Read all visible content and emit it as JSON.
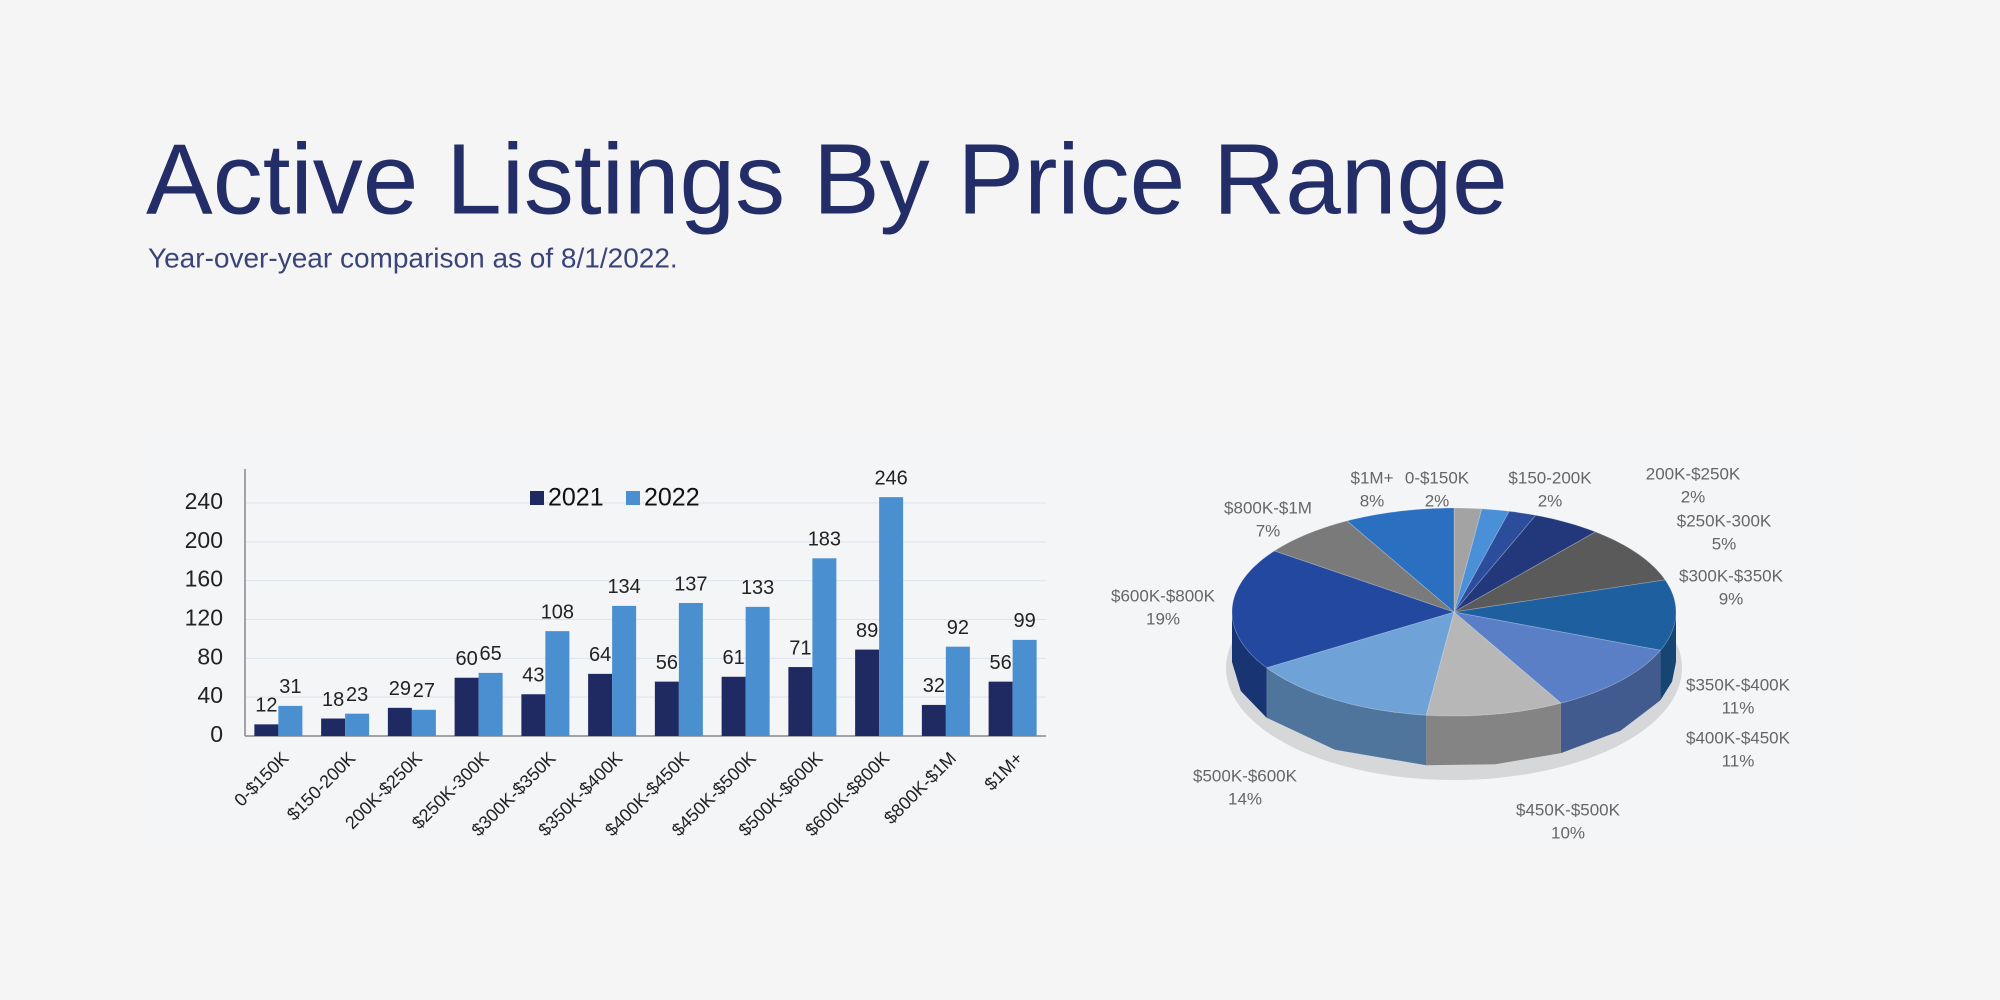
{
  "header": {
    "title": "Active Listings By Price Range",
    "subtitle": "Year-over-year comparison as of 8/1/2022."
  },
  "chart_data": [
    {
      "type": "bar",
      "categories": [
        "0-$150K",
        "$150-200K",
        "200K-$250K",
        "$250K-300K",
        "$300K-$350K",
        "$350K-$400K",
        "$400K-$450K",
        "$450K-$500K",
        "$500K-$600K",
        "$600K-$800K",
        "$800K-$1M",
        "$1M+"
      ],
      "series": [
        {
          "name": "2021",
          "color": "#1f2a63",
          "values": [
            12,
            18,
            29,
            60,
            43,
            64,
            56,
            61,
            71,
            89,
            32,
            56
          ]
        },
        {
          "name": "2022",
          "color": "#4a8fd0",
          "values": [
            31,
            23,
            27,
            65,
            108,
            134,
            137,
            133,
            183,
            246,
            92,
            99
          ]
        }
      ],
      "ylim": [
        0,
        275
      ],
      "yticks": [
        0,
        40,
        80,
        120,
        160,
        200,
        240
      ],
      "grid": true,
      "legend": "top"
    },
    {
      "type": "pie",
      "categories": [
        "0-$150K",
        "$150-200K",
        "200K-$250K",
        "$250K-300K",
        "$300K-$350K",
        "$350K-$400K",
        "$400K-$450K",
        "$450K-$500K",
        "$500K-$600K",
        "$600K-$800K",
        "$800K-$1M",
        "$1M+"
      ],
      "values": [
        2,
        2,
        2,
        5,
        9,
        11,
        11,
        10,
        14,
        19,
        7,
        8
      ],
      "value_labels": [
        "2%",
        "2%",
        "2%",
        "5%",
        "9%",
        "11%",
        "11%",
        "10%",
        "14%",
        "19%",
        "7%",
        "8%"
      ],
      "colors": [
        "#a3a3a3",
        "#4a90d9",
        "#2c4c9c",
        "#22387a",
        "#5a5a5a",
        "#1e5fa0",
        "#5b7fc7",
        "#b7b7b7",
        "#6fa3d8",
        "#2348a0",
        "#7a7a7a",
        "#2a6fc0"
      ]
    }
  ]
}
